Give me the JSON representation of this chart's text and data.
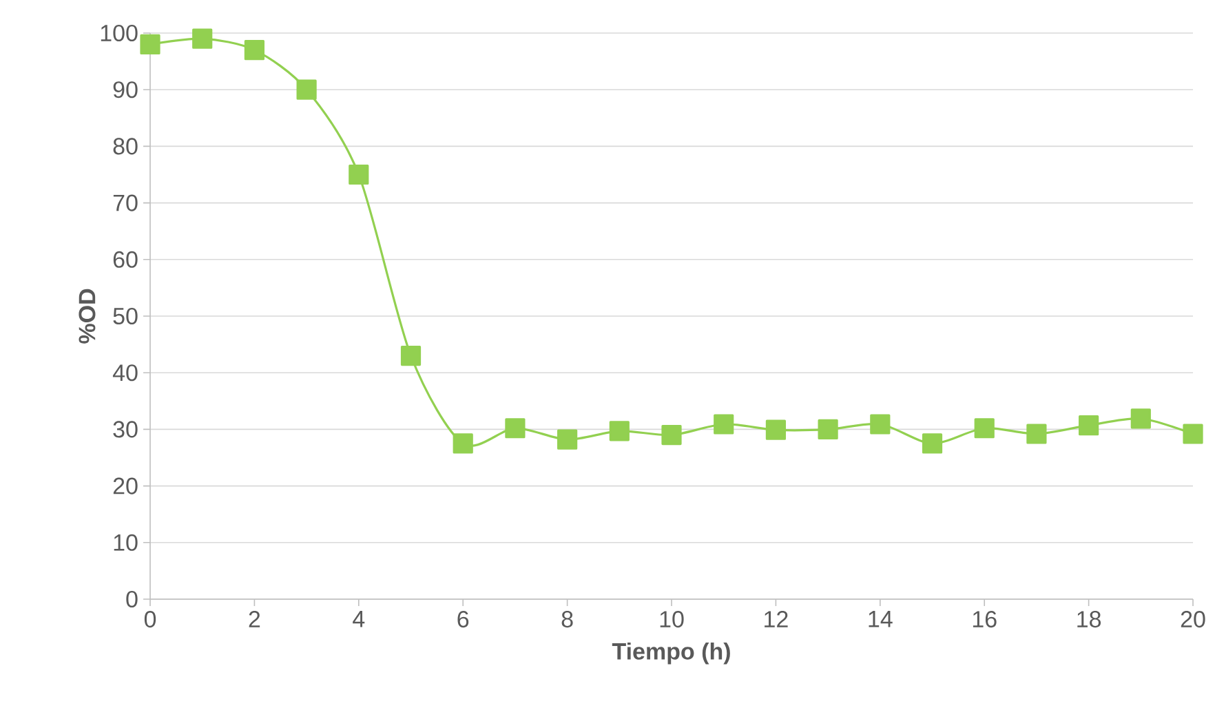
{
  "chart_data": {
    "type": "line",
    "xlabel": "Tiempo (h)",
    "ylabel": "%OD",
    "x": [
      0,
      1,
      2,
      3,
      4,
      5,
      6,
      7,
      8,
      9,
      10,
      11,
      12,
      13,
      14,
      15,
      16,
      17,
      18,
      19,
      20
    ],
    "series": [
      {
        "color": "#92d050",
        "values": [
          98,
          99,
          97,
          90,
          75,
          43,
          27.5,
          30.2,
          28.2,
          29.7,
          29,
          30.9,
          29.9,
          30,
          30.9,
          27.5,
          30.2,
          29.2,
          30.7,
          31.9,
          29.2
        ]
      }
    ],
    "xlim": [
      0,
      20
    ],
    "ylim": [
      0,
      100
    ],
    "xticks": [
      0,
      2,
      4,
      6,
      8,
      10,
      12,
      14,
      16,
      18,
      20
    ],
    "yticks": [
      0,
      10,
      20,
      30,
      40,
      50,
      60,
      70,
      80,
      90,
      100
    ],
    "grid": "y",
    "marker": "square"
  }
}
